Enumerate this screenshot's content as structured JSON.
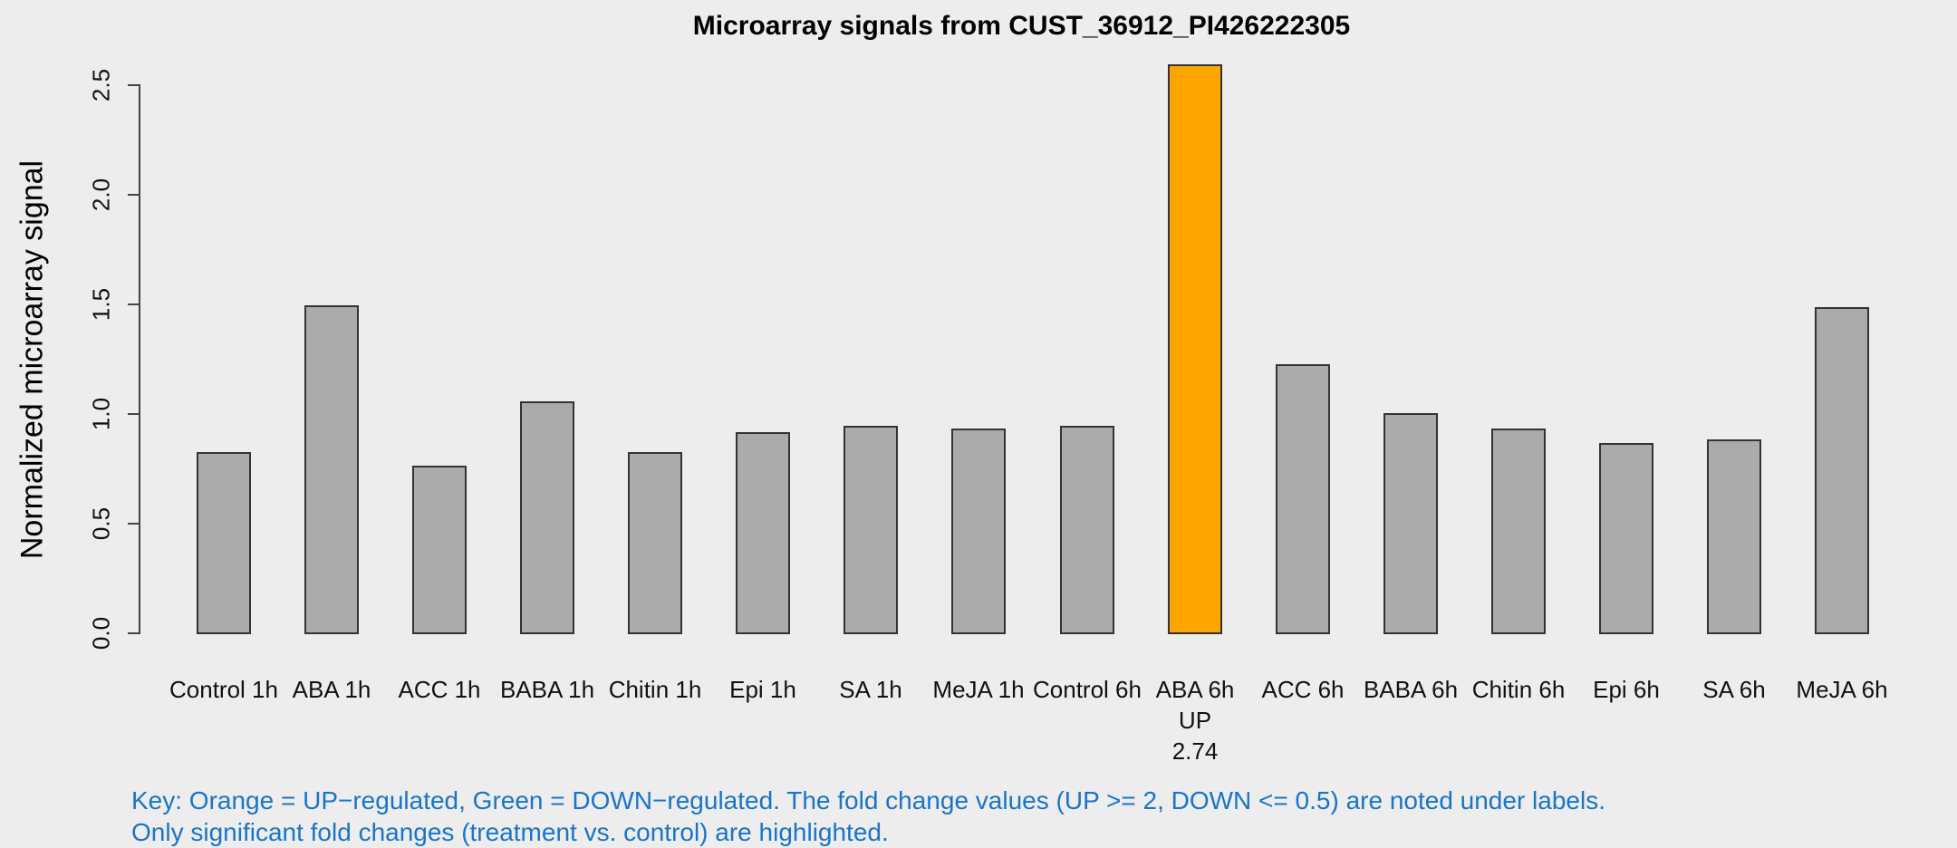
{
  "figure": {
    "background": "#EDEDED",
    "title": "Microarray signals from CUST_36912_PI426222305",
    "key": {
      "color": "#1874CD",
      "line1": "Key: Orange = UP−regulated, Green = DOWN−regulated. The fold change values (UP >= 2, DOWN <= 0.5) are noted under labels.",
      "line2": "Only significant fold changes (treatment vs. control) are highlighted."
    }
  },
  "chart_data": {
    "type": "bar",
    "title": "Microarray signals from CUST_36912_PI426222305",
    "xlabel": "",
    "ylabel": "Normalized microarray signal",
    "ylim": [
      0,
      2.6
    ],
    "yticks": [
      "0.0",
      "0.5",
      "1.0",
      "1.5",
      "2.0",
      "2.5"
    ],
    "ytick_values": [
      0,
      0.5,
      1.0,
      1.5,
      2.0,
      2.5
    ],
    "grid": false,
    "legend": "none",
    "categories": [
      "Control 1h",
      "ABA 1h",
      "ACC 1h",
      "BABA 1h",
      "Chitin 1h",
      "Epi 1h",
      "SA 1h",
      "MeJA 1h",
      "Control 6h",
      "ABA 6h",
      "ACC 6h",
      "BABA 6h",
      "Chitin 6h",
      "Epi 6h",
      "SA 6h",
      "MeJA 6h"
    ],
    "values": [
      0.83,
      1.5,
      0.77,
      1.06,
      0.83,
      0.92,
      0.95,
      0.94,
      0.95,
      2.6,
      1.23,
      1.01,
      0.94,
      0.87,
      0.89,
      1.49
    ],
    "bar_default_color": "#ABABAB",
    "bar_up_color": "#FFA500",
    "highlighted": [
      {
        "index": 9,
        "category": "ABA 6h",
        "direction": "UP",
        "fold_change": "2.74",
        "color": "#FFA500"
      }
    ],
    "annotations": [
      {
        "index": 9,
        "category": "ABA 6h",
        "lines": [
          "UP",
          "2.74"
        ]
      }
    ]
  }
}
